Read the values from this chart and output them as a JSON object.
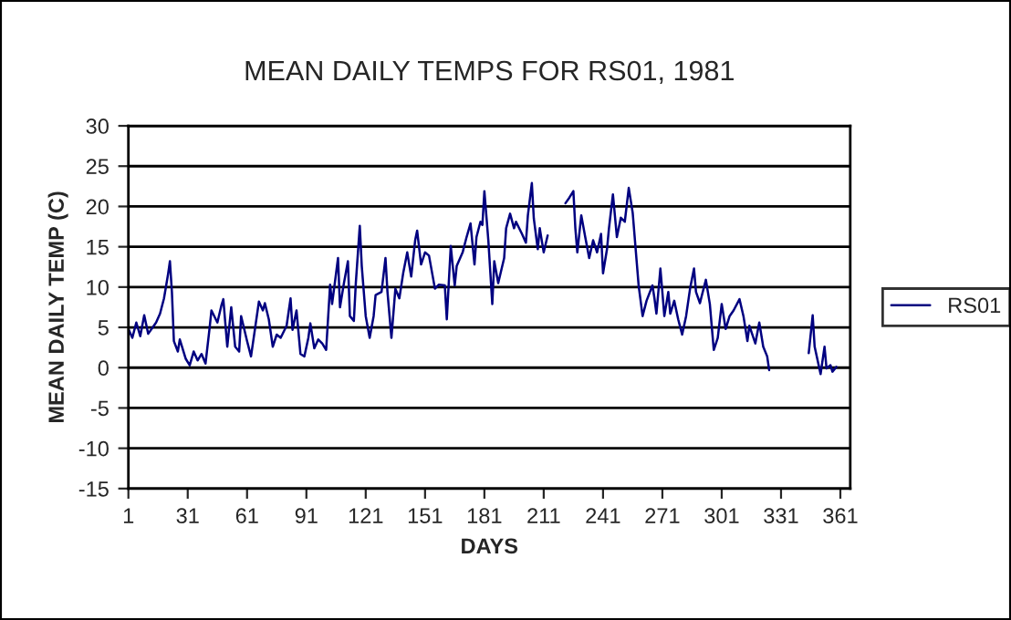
{
  "chart_data": {
    "type": "line",
    "title": "MEAN DAILY TEMPS FOR RS01, 1981",
    "xlabel": "DAYS",
    "ylabel": "MEAN DAILY TEMP (C)",
    "xlim": [
      1,
      366
    ],
    "xticks": [
      1,
      31,
      61,
      91,
      121,
      151,
      181,
      211,
      241,
      271,
      301,
      331,
      361
    ],
    "ylim": [
      -15,
      30
    ],
    "yticks": [
      -15,
      -10,
      -5,
      0,
      5,
      10,
      15,
      20,
      25,
      30
    ],
    "grid": "y",
    "legend": "right",
    "marker": "none",
    "line_style": "solid",
    "series": [
      {
        "name": "RS01",
        "color": "#000080",
        "x": [
          1,
          3,
          5,
          7,
          9,
          11,
          15,
          17,
          19,
          21,
          22,
          23,
          24,
          26,
          27,
          30,
          32,
          34,
          36,
          38,
          40,
          42,
          43,
          46,
          48,
          49,
          51,
          53,
          55,
          57,
          58,
          61,
          63,
          65,
          67,
          69,
          70,
          72,
          74,
          76,
          78,
          81,
          83,
          84,
          86,
          88,
          90,
          92,
          93,
          95,
          97,
          99,
          101,
          103,
          104,
          106,
          107,
          108,
          110,
          112,
          113,
          115,
          116,
          118,
          119,
          121,
          123,
          125,
          126,
          129,
          131,
          132,
          134,
          136,
          138,
          140,
          142,
          144,
          146,
          147,
          149,
          151,
          153,
          156,
          158,
          161,
          162,
          164,
          166,
          167,
          170,
          172,
          174,
          176,
          177,
          179,
          180,
          181,
          183,
          185,
          186,
          188,
          191,
          192,
          194,
          196,
          197,
          200,
          202,
          203,
          205,
          206,
          208,
          209,
          211,
          213,
          218,
          222,
          224,
          226,
          227,
          228,
          230,
          232,
          234,
          236,
          238,
          240,
          241,
          243,
          244,
          246,
          248,
          250,
          252,
          254,
          256,
          258,
          259,
          261,
          263,
          266,
          267,
          268,
          270,
          272,
          274,
          275,
          277,
          279,
          281,
          283,
          285,
          287,
          288,
          290,
          291,
          293,
          295,
          297,
          299,
          301,
          303,
          305,
          307,
          310,
          312,
          314,
          315,
          318,
          320,
          322,
          324,
          325,
          335,
          345,
          347,
          348,
          351,
          353,
          354,
          356,
          357,
          359
        ],
        "values": [
          4.8,
          3.7,
          5.6,
          3.9,
          6.5,
          4.2,
          5.6,
          6.7,
          8.6,
          11.5,
          13.2,
          9.4,
          3.3,
          2.0,
          3.5,
          1.1,
          0.3,
          2.0,
          0.9,
          1.7,
          0.5,
          4.8,
          7.1,
          5.6,
          7.7,
          8.5,
          2.6,
          7.5,
          2.6,
          2.0,
          6.4,
          3.3,
          1.4,
          4.8,
          8.2,
          7.1,
          8.0,
          6.0,
          2.6,
          4.1,
          3.7,
          5.2,
          8.6,
          4.7,
          7.1,
          1.7,
          1.4,
          3.7,
          5.5,
          2.4,
          3.5,
          3.0,
          2.2,
          10.3,
          7.9,
          11.7,
          13.6,
          7.5,
          10.5,
          13.2,
          6.4,
          5.8,
          10.5,
          17.6,
          12.6,
          6.4,
          3.7,
          6.4,
          9.0,
          9.4,
          13.6,
          9.4,
          3.7,
          9.8,
          8.6,
          11.8,
          14.3,
          11.3,
          15.8,
          17.0,
          12.8,
          14.3,
          13.9,
          9.8,
          10.3,
          10.2,
          6.0,
          15.1,
          10.2,
          12.6,
          14.3,
          16.2,
          17.9,
          12.8,
          16.2,
          18.1,
          17.7,
          21.9,
          15.8,
          7.9,
          13.2,
          10.5,
          13.6,
          17.3,
          19.1,
          17.3,
          18.1,
          16.6,
          15.5,
          18.9,
          22.9,
          18.5,
          14.7,
          17.3,
          14.3,
          16.4,
          null,
          20.4,
          21.1,
          21.9,
          17.3,
          14.3,
          18.9,
          16.2,
          13.6,
          15.8,
          14.3,
          16.6,
          11.7,
          14.7,
          17.3,
          21.5,
          16.2,
          18.6,
          18.1,
          22.3,
          19.2,
          13.2,
          10.2,
          6.4,
          8.3,
          10.2,
          8.6,
          6.7,
          12.3,
          6.4,
          9.4,
          6.7,
          8.3,
          6.0,
          4.1,
          6.4,
          9.8,
          12.3,
          9.4,
          8.0,
          9.0,
          10.9,
          7.9,
          2.2,
          3.7,
          7.9,
          4.8,
          6.4,
          7.1,
          8.5,
          6.4,
          3.3,
          5.2,
          3.0,
          5.6,
          2.6,
          1.4,
          -0.3,
          null,
          1.8,
          6.5,
          2.6,
          -0.8,
          2.6,
          -0.1,
          0.3,
          -0.5,
          0.1
        ]
      }
    ]
  }
}
